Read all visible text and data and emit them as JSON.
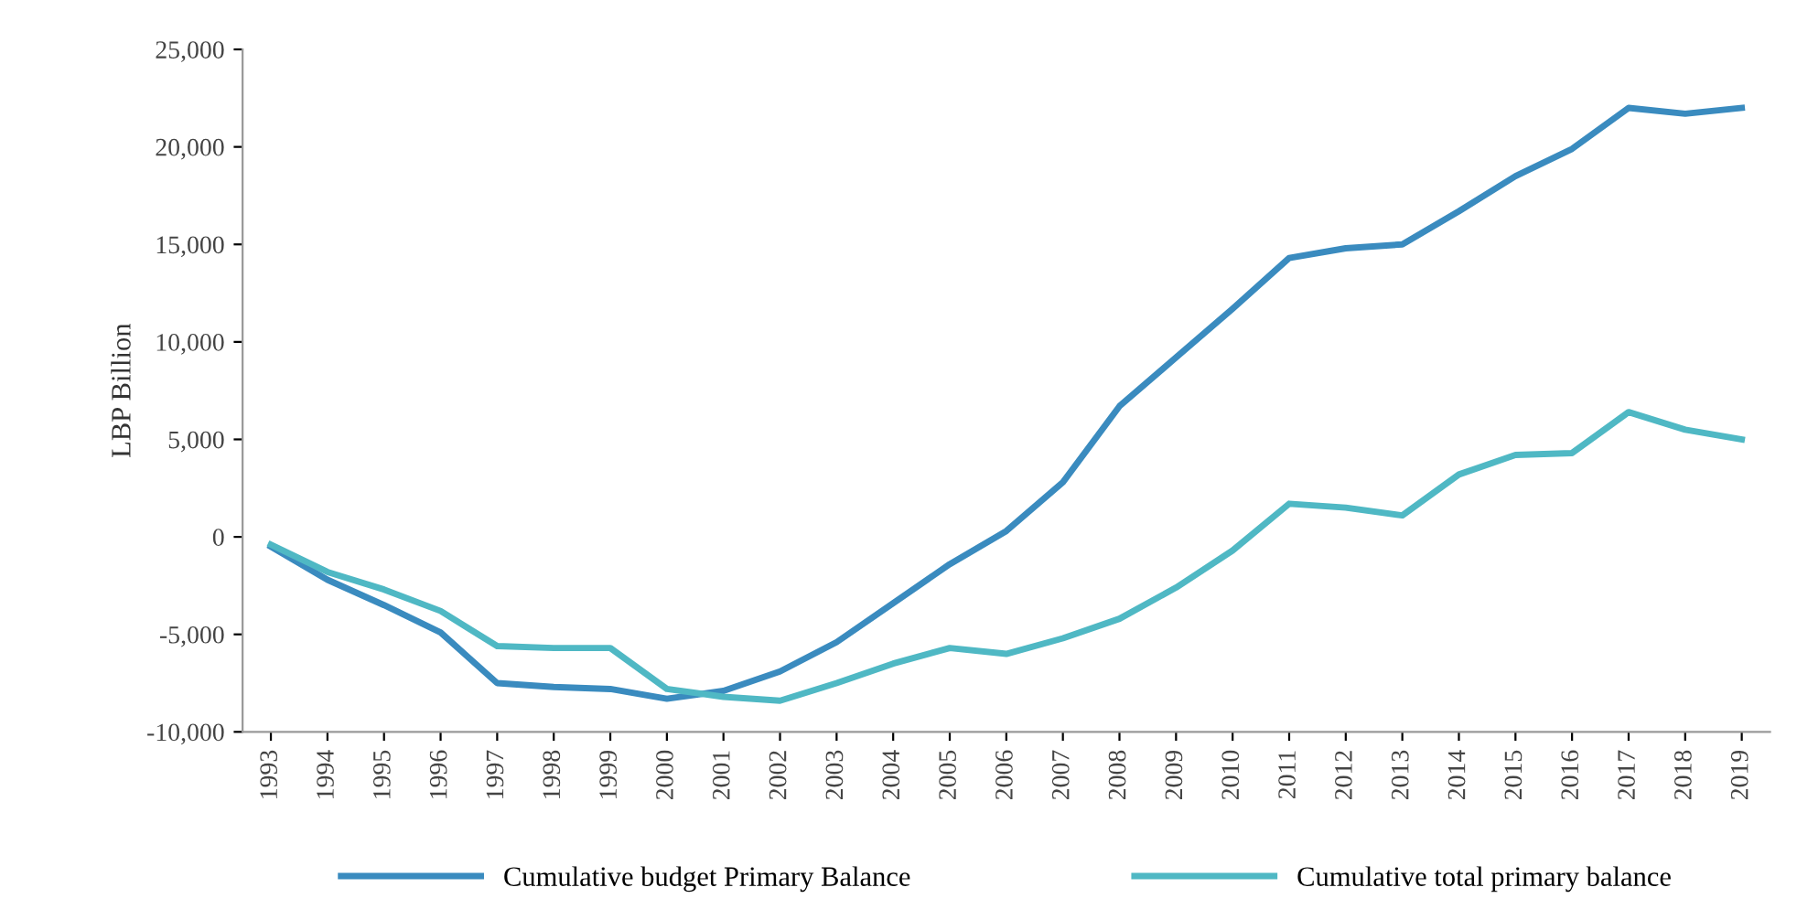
{
  "chart_data": {
    "type": "line",
    "ylabel": "LBP Billion",
    "categories": [
      "1993",
      "1994",
      "1995",
      "1996",
      "1997",
      "1998",
      "1999",
      "2000",
      "2001",
      "2002",
      "2003",
      "2004",
      "2005",
      "2006",
      "2007",
      "2008",
      "2009",
      "2010",
      "2011",
      "2012",
      "2013",
      "2014",
      "2015",
      "2016",
      "2017",
      "2018",
      "2019"
    ],
    "series": [
      {
        "name": "Cumulative budget Primary Balance",
        "color": "#3a8bbf",
        "values": [
          -500,
          -2200,
          -3500,
          -4900,
          -7500,
          -7700,
          -7800,
          -8300,
          -7900,
          -6900,
          -5400,
          -3400,
          -1400,
          300,
          2800,
          6700,
          9200,
          11700,
          14300,
          14800,
          15000,
          16700,
          18500,
          19900,
          22000,
          21700,
          22000
        ]
      },
      {
        "name": "Cumulative total primary balance",
        "color": "#4fb8c4",
        "values": [
          -400,
          -1800,
          -2700,
          -3800,
          -5600,
          -5700,
          -5700,
          -7800,
          -8200,
          -8400,
          -7500,
          -6500,
          -5700,
          -6000,
          -5200,
          -4200,
          -2600,
          -700,
          1700,
          1500,
          1100,
          3200,
          4200,
          4300,
          6400,
          5500,
          5000
        ]
      }
    ],
    "ylim": [
      -10000,
      25000
    ],
    "yticks": [
      {
        "value": -10000,
        "label": "-10,000"
      },
      {
        "value": -5000,
        "label": "-5,000"
      },
      0,
      {
        "value": 5000,
        "label": "5,000"
      },
      {
        "value": 10000,
        "label": "10,000"
      },
      {
        "value": 15000,
        "label": "15,000"
      },
      {
        "value": 20000,
        "label": "20,000"
      },
      {
        "value": 25000,
        "label": "25,000"
      }
    ],
    "grid": false,
    "legend": "bottom",
    "marker": "none",
    "line_style": "solid"
  }
}
